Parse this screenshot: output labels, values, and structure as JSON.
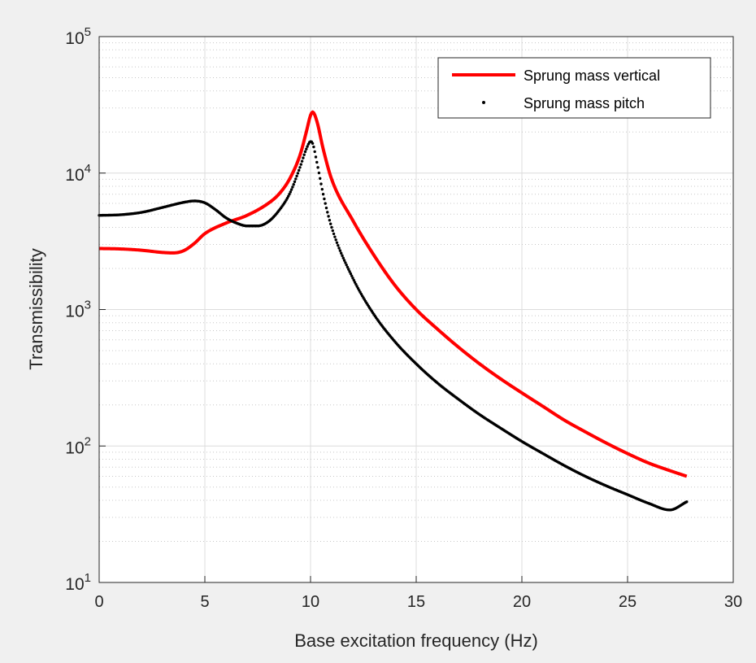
{
  "chart_data": {
    "type": "line",
    "xlabel": "Base excitation frequency (Hz)",
    "ylabel": "Transmissibility",
    "xlim": [
      0,
      30
    ],
    "ylim": [
      10,
      100000
    ],
    "yscale": "log",
    "grid": "major and minor",
    "legend_position": "top-right",
    "x_ticks": [
      {
        "value": 0,
        "label": "0"
      },
      {
        "value": 5,
        "label": "5"
      },
      {
        "value": 10,
        "label": "10"
      },
      {
        "value": 15,
        "label": "15"
      },
      {
        "value": 20,
        "label": "20"
      },
      {
        "value": 25,
        "label": "25"
      },
      {
        "value": 30,
        "label": "30"
      }
    ],
    "y_ticks": [
      {
        "value": 10,
        "base": "10",
        "exp": "1"
      },
      {
        "value": 100,
        "base": "10",
        "exp": "2"
      },
      {
        "value": 1000,
        "base": "10",
        "exp": "3"
      },
      {
        "value": 10000,
        "base": "10",
        "exp": "4"
      },
      {
        "value": 100000,
        "base": "10",
        "exp": "5"
      }
    ],
    "series": [
      {
        "name": "Sprung mass vertical",
        "style": "line",
        "color": "#ff0000",
        "x": [
          0,
          1,
          2,
          3,
          3.5,
          4,
          4.5,
          5,
          6,
          7,
          8,
          8.5,
          9,
          9.5,
          9.8,
          10,
          10.1,
          10.3,
          10.6,
          11,
          12,
          13,
          14,
          15,
          16,
          17,
          18,
          19,
          20,
          21,
          22,
          23,
          24,
          25,
          26,
          27,
          27.8
        ],
        "y": [
          2800,
          2780,
          2720,
          2620,
          2600,
          2700,
          3050,
          3600,
          4300,
          4900,
          6000,
          7000,
          9000,
          13500,
          20000,
          26500,
          28000,
          24000,
          15000,
          9000,
          4500,
          2500,
          1500,
          1000,
          720,
          530,
          400,
          310,
          245,
          195,
          155,
          127,
          105,
          88,
          75,
          66,
          60
        ]
      },
      {
        "name": "Sprung mass pitch",
        "style": "dots",
        "color": "#000000",
        "x": [
          0,
          1,
          2,
          3,
          4,
          4.5,
          5,
          5.5,
          6,
          6.5,
          7,
          7.5,
          8,
          8.5,
          9,
          9.5,
          9.8,
          10,
          10.1,
          10.3,
          10.6,
          11,
          12,
          13,
          14,
          15,
          16,
          17,
          18,
          19,
          20,
          21,
          22,
          23,
          24,
          25,
          26,
          27,
          27.8
        ],
        "y": [
          4900,
          4950,
          5150,
          5600,
          6100,
          6250,
          6050,
          5400,
          4700,
          4300,
          4100,
          4100,
          4400,
          5300,
          7000,
          11000,
          15000,
          17000,
          16500,
          12000,
          7000,
          4000,
          1700,
          920,
          580,
          400,
          290,
          220,
          170,
          135,
          108,
          88,
          72,
          60,
          51,
          44,
          38,
          34,
          39
        ]
      }
    ]
  }
}
